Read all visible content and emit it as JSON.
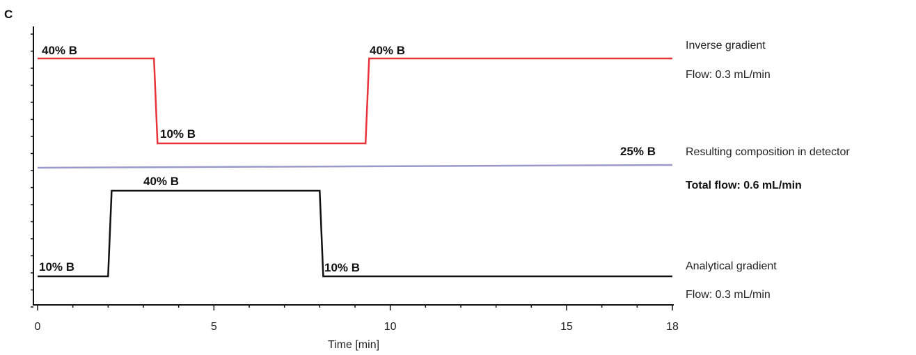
{
  "panel_label": "C",
  "chart_data": {
    "type": "line",
    "title": "",
    "xlabel": "Time [min]",
    "ylabel": "",
    "xlim": [
      0,
      18
    ],
    "x_ticks": [
      0,
      5,
      10,
      15,
      18
    ],
    "x_tick_labels": [
      "0",
      "5",
      "10",
      "15",
      "18"
    ],
    "grid": false,
    "series": [
      {
        "key": "inverse",
        "color": "#e8333a",
        "x": [
          0,
          3.3,
          3.4,
          9.3,
          9.4,
          18
        ],
        "y": [
          40,
          40,
          10,
          10,
          40,
          40
        ],
        "labels": [
          "40% B",
          "10% B",
          "40% B"
        ]
      },
      {
        "key": "resulting",
        "color": "#9b99c9",
        "x": [
          0,
          18
        ],
        "y": [
          25,
          25
        ],
        "labels": [
          "25% B"
        ]
      },
      {
        "key": "analytical",
        "color": "#111111",
        "x": [
          0,
          2.0,
          2.1,
          8.0,
          8.1,
          18
        ],
        "y": [
          10,
          10,
          40,
          40,
          10,
          10
        ],
        "labels": [
          "10% B",
          "40% B",
          "10% B"
        ]
      }
    ]
  },
  "annotations": {
    "inverse_name": "Inverse gradient",
    "inverse_flow": "Flow: 0.3 mL/min",
    "resulting_name": "Resulting composition in detector",
    "total_flow": "Total flow: 0.6 mL/min",
    "analytical_name": "Analytical gradient",
    "analytical_flow": "Flow: 0.3 mL/min"
  }
}
